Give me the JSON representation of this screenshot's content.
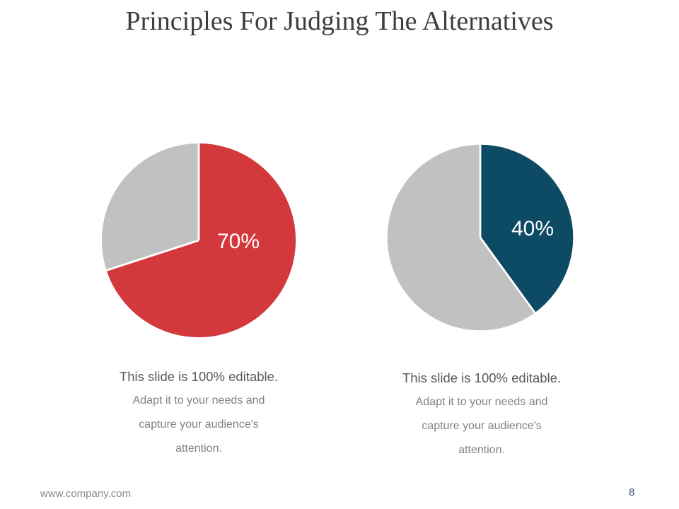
{
  "slide": {
    "title": "Principles For Judging The Alternatives",
    "footer": {
      "website": "www.company.com",
      "page_number": "8"
    }
  },
  "chart_data": [
    {
      "type": "pie",
      "title": "",
      "start_angle_deg": 0,
      "direction": "clockwise",
      "legend": "none",
      "data_label": "70%",
      "data_label_color": "#ffffff",
      "series": [
        {
          "name": "highlighted",
          "value": 70,
          "color": "#d3383c"
        },
        {
          "name": "remainder",
          "value": 30,
          "color": "#c1c1c1"
        }
      ],
      "caption_lines": [
        "This slide is 100% editable.",
        "Adapt it to your needs and",
        "capture your audience's",
        "attention."
      ]
    },
    {
      "type": "pie",
      "title": "",
      "start_angle_deg": 0,
      "direction": "clockwise",
      "legend": "none",
      "data_label": "40%",
      "data_label_color": "#ffffff",
      "series": [
        {
          "name": "highlighted",
          "value": 40,
          "color": "#0d4a63"
        },
        {
          "name": "remainder",
          "value": 60,
          "color": "#c1c1c1"
        }
      ],
      "caption_lines": [
        "This slide is 100% editable.",
        "Adapt it to your needs and",
        "capture your audience's",
        "attention."
      ]
    }
  ]
}
